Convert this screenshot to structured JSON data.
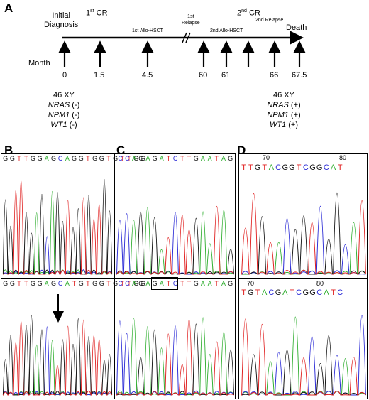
{
  "panelA": {
    "label": "A",
    "initial_diagnosis_line1": "Initial",
    "initial_diagnosis_line2": "Diagnosis",
    "first_cr": "1",
    "first_cr_sup": "st",
    "first_cr_suffix": " CR",
    "second_cr": "2",
    "second_cr_sup": "nd",
    "second_cr_suffix": " CR",
    "first_relapse_sup": "1st",
    "first_relapse_word": "Relapse",
    "second_relapse": "2nd Relapse",
    "death": "Death",
    "allo1": "1st Allo-HSCT",
    "allo2": "2nd Allo-HSCT",
    "month_label": "Month",
    "months": [
      "0",
      "1.5",
      "4.5",
      "60",
      "61",
      "66",
      "67.5"
    ],
    "status_left": {
      "karyotype": "46 XY",
      "genes": [
        {
          "name": "NRAS",
          "val": " (-)"
        },
        {
          "name": "NPM1",
          "val": " (-)"
        },
        {
          "name": "WT1",
          "val": " (-)"
        }
      ]
    },
    "status_right": {
      "karyotype": "46 XY",
      "genes": [
        {
          "name": "NRAS",
          "val": " (+)"
        },
        {
          "name": "NPM1",
          "val": " (+)"
        },
        {
          "name": "WT1",
          "val": " (+)"
        }
      ]
    }
  },
  "panelB": {
    "label": "B",
    "seq_top": "GGTTGGAGCAGGTGGTGTTGG",
    "seq_bottom": "GGTTGGAGCATGTGGTGTTGG"
  },
  "panelC": {
    "label": "C",
    "seq_top": "CCAGAGATCTTGAATAG",
    "seq_bottom": "CCAGAGATCTTGAATAG"
  },
  "panelD": {
    "label": "D",
    "ruler_top": [
      "70",
      "80"
    ],
    "seq_top": "TTGTACGGTCGGCAT",
    "ruler_bottom": [
      "70",
      "80"
    ],
    "seq_bottom": "TGTACGATCGGCATC"
  },
  "colors": {
    "A": "#2fae2f",
    "C": "#2b2bd6",
    "G": "#111111",
    "T": "#e02020"
  }
}
